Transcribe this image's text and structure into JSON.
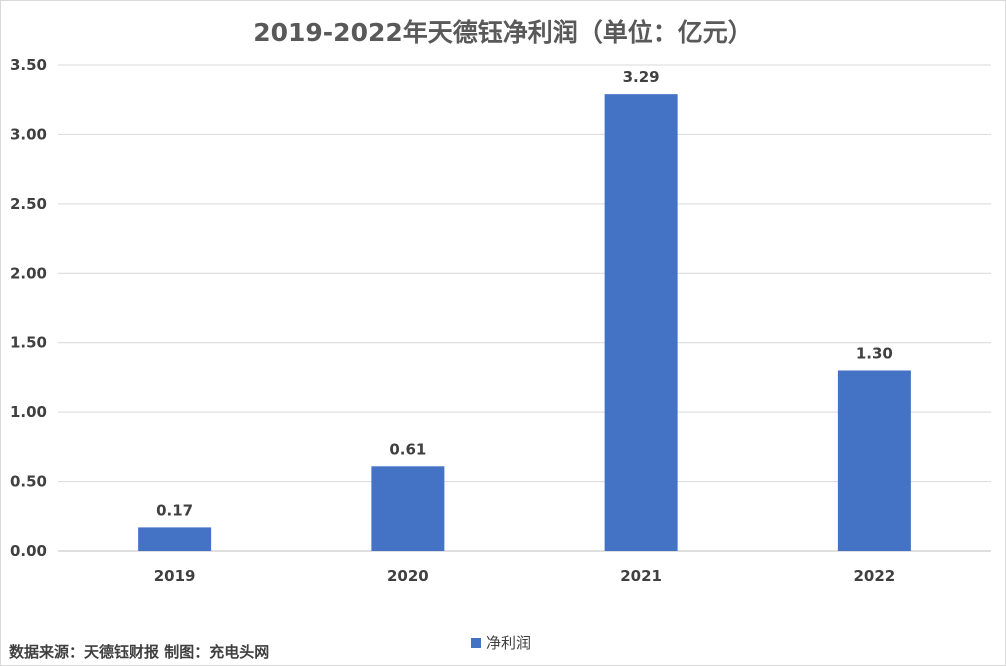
{
  "chart_data": {
    "type": "bar",
    "title": "2019-2022年天德钰净利润（单位：亿元）",
    "categories": [
      "2019",
      "2020",
      "2021",
      "2022"
    ],
    "series": [
      {
        "name": "净利润",
        "values": [
          0.17,
          0.61,
          3.29,
          1.3
        ],
        "data_labels": [
          "0.17",
          "0.61",
          "3.29",
          "1.30"
        ]
      }
    ],
    "ylim": [
      0,
      3.5
    ],
    "yticks": [
      "0.00",
      "0.50",
      "1.00",
      "1.50",
      "2.00",
      "2.50",
      "3.00",
      "3.50"
    ],
    "grid": true,
    "legend": "bottom-center",
    "bar_color": "#4472c4"
  },
  "source_note": "数据来源：天德钰财报 制图：充电头网"
}
